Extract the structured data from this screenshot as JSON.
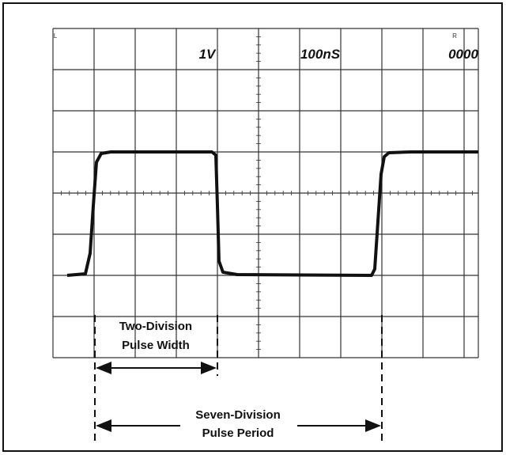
{
  "screen": {
    "corner_left": "L",
    "corner_right": "R",
    "volts_per_div": "1V",
    "time_per_div": "100nS",
    "counter": "0000"
  },
  "annotations": {
    "width_line1": "Two-Division",
    "width_line2": "Pulse Width",
    "period_line1": "Seven-Division",
    "period_line2": "Pulse Period"
  }
}
